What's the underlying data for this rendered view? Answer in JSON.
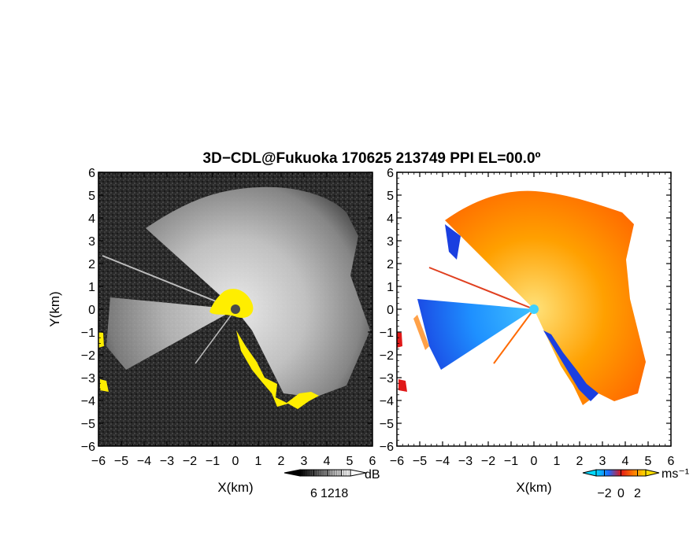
{
  "title": "3D−CDL@Fukuoka 170625 213749 PPI EL=00.0º",
  "chart_data": [
    {
      "type": "heatmap",
      "panel": "left",
      "quantity": "backscatter intensity",
      "xlabel": "X(km)",
      "ylabel": "Y(km)",
      "xlim": [
        -6,
        6
      ],
      "ylim": [
        -6,
        6
      ],
      "xticks": [
        "−6",
        "−5",
        "−4",
        "−3",
        "−2",
        "−1",
        "0",
        "1",
        "2",
        "3",
        "4",
        "5",
        "6"
      ],
      "yticks": [
        "6",
        "5",
        "4",
        "3",
        "2",
        "1",
        "0",
        "−1",
        "−2",
        "−3",
        "−4",
        "−5",
        "−6"
      ],
      "colorbar": {
        "unit": "dB",
        "ticks": [
          6,
          12,
          18
        ],
        "tick_labels": [
          "6",
          "12",
          "18"
        ],
        "range": [
          0,
          22
        ],
        "colormap": "grayscale (black to white)",
        "extend": "both"
      },
      "highlight_color": "#ffee00",
      "background_color": "#262626"
    },
    {
      "type": "heatmap",
      "panel": "right",
      "quantity": "radial velocity",
      "xlabel": "X(km)",
      "ylabel": "",
      "xlim": [
        -6,
        6
      ],
      "ylim": [
        -6,
        6
      ],
      "xticks": [
        "−6",
        "−5",
        "−4",
        "−3",
        "−2",
        "−1",
        "0",
        "1",
        "2",
        "3",
        "4",
        "5",
        "6"
      ],
      "yticks": [
        "6",
        "5",
        "4",
        "3",
        "2",
        "1",
        "0",
        "−1",
        "−2",
        "−3",
        "−4",
        "−5",
        "−6"
      ],
      "colorbar": {
        "unit": "ms⁻¹",
        "ticks": [
          -2,
          0,
          2
        ],
        "tick_labels": [
          "−2",
          "0",
          "2"
        ],
        "range": [
          -3,
          3
        ],
        "colormap": "cyan-blue-red-orange-yellow",
        "extend": "both"
      },
      "background_color": "#ffffff"
    }
  ]
}
